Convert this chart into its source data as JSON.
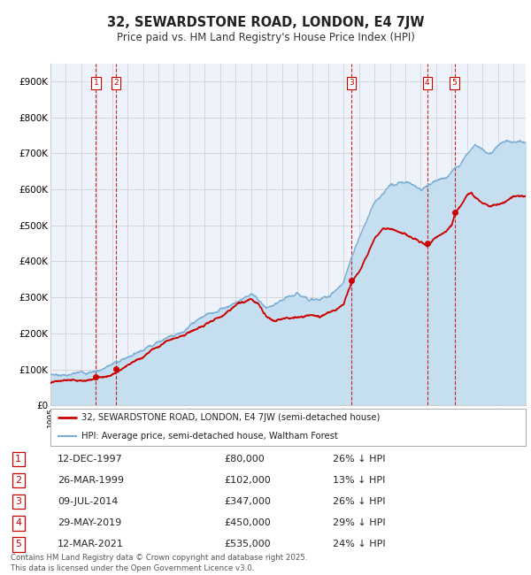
{
  "title": "32, SEWARDSTONE ROAD, LONDON, E4 7JW",
  "subtitle": "Price paid vs. HM Land Registry's House Price Index (HPI)",
  "ylim": [
    0,
    950000
  ],
  "yticks": [
    0,
    100000,
    200000,
    300000,
    400000,
    500000,
    600000,
    700000,
    800000,
    900000
  ],
  "ytick_labels": [
    "£0",
    "£100K",
    "£200K",
    "£300K",
    "£400K",
    "£500K",
    "£600K",
    "£700K",
    "£800K",
    "£900K"
  ],
  "legend_line1": "32, SEWARDSTONE ROAD, LONDON, E4 7JW (semi-detached house)",
  "legend_line2": "HPI: Average price, semi-detached house, Waltham Forest",
  "red_color": "#cc0000",
  "blue_color": "#7aadd4",
  "blue_fill_color": "#c5dff0",
  "grid_color": "#cccccc",
  "bg_color": "#eef3fb",
  "transactions": [
    {
      "num": 1,
      "date": "12-DEC-1997",
      "price": "£80,000",
      "pct": "26% ↓ HPI",
      "year_x": 1997.95,
      "price_val": 80000
    },
    {
      "num": 2,
      "date": "26-MAR-1999",
      "price": "£102,000",
      "pct": "13% ↓ HPI",
      "year_x": 1999.23,
      "price_val": 102000
    },
    {
      "num": 3,
      "date": "09-JUL-2014",
      "price": "£347,000",
      "pct": "26% ↓ HPI",
      "year_x": 2014.52,
      "price_val": 347000
    },
    {
      "num": 4,
      "date": "29-MAY-2019",
      "price": "£450,000",
      "pct": "29% ↓ HPI",
      "year_x": 2019.41,
      "price_val": 450000
    },
    {
      "num": 5,
      "date": "12-MAR-2021",
      "price": "£535,000",
      "pct": "24% ↓ HPI",
      "year_x": 2021.19,
      "price_val": 535000
    }
  ],
  "footer": "Contains HM Land Registry data © Crown copyright and database right 2025.\nThis data is licensed under the Open Government Licence v3.0.",
  "xlim_start": 1995.0,
  "xlim_end": 2025.8
}
